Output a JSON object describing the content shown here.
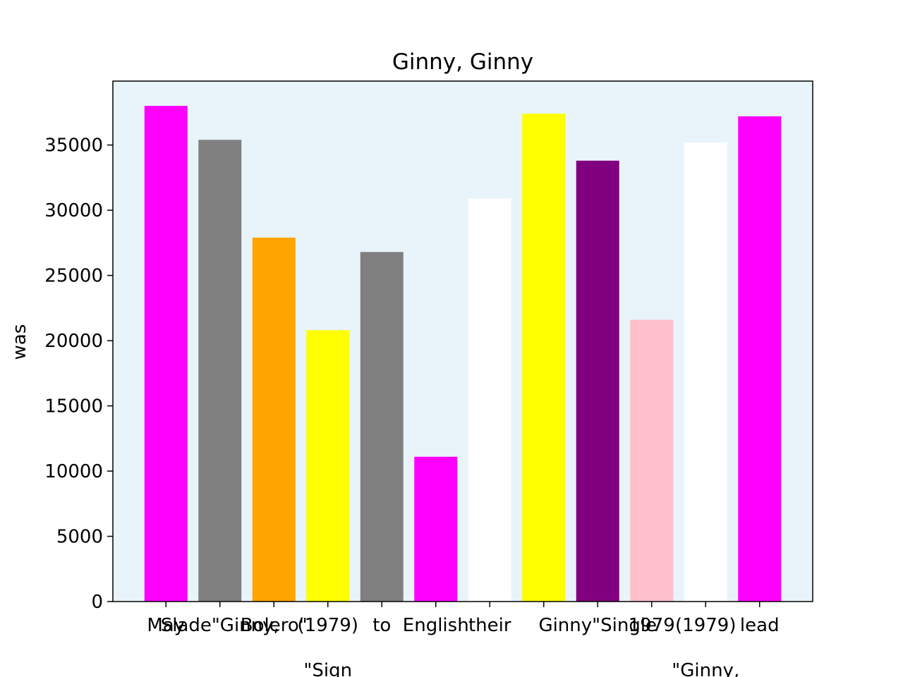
{
  "chart_data": {
    "type": "bar",
    "title": "Ginny, Ginny",
    "ylabel": "was",
    "categories": [
      "May",
      "Slade\"Ginny,",
      "Bolero\"",
      "(1979)\n\n\"Sign",
      "to",
      "English",
      "their",
      null,
      "Ginny\"Single",
      "1979",
      "(1979)\n\n\"Ginny,",
      "lead"
    ],
    "values": [
      38000,
      35400,
      27900,
      20800,
      26800,
      11100,
      30900,
      37400,
      33800,
      21600,
      35200,
      37200
    ],
    "colors": [
      "#ff00ff",
      "#808080",
      "#ffa500",
      "#ffff00",
      "#808080",
      "#ff00ff",
      "#ffffff",
      "#ffff00",
      "#800080",
      "#ffc0cb",
      "#ffffff",
      "#ff00ff"
    ],
    "ylim": [
      0,
      39900
    ],
    "yticks": [
      0,
      5000,
      10000,
      15000,
      20000,
      25000,
      30000,
      35000
    ],
    "background": "#e8f4fa"
  }
}
